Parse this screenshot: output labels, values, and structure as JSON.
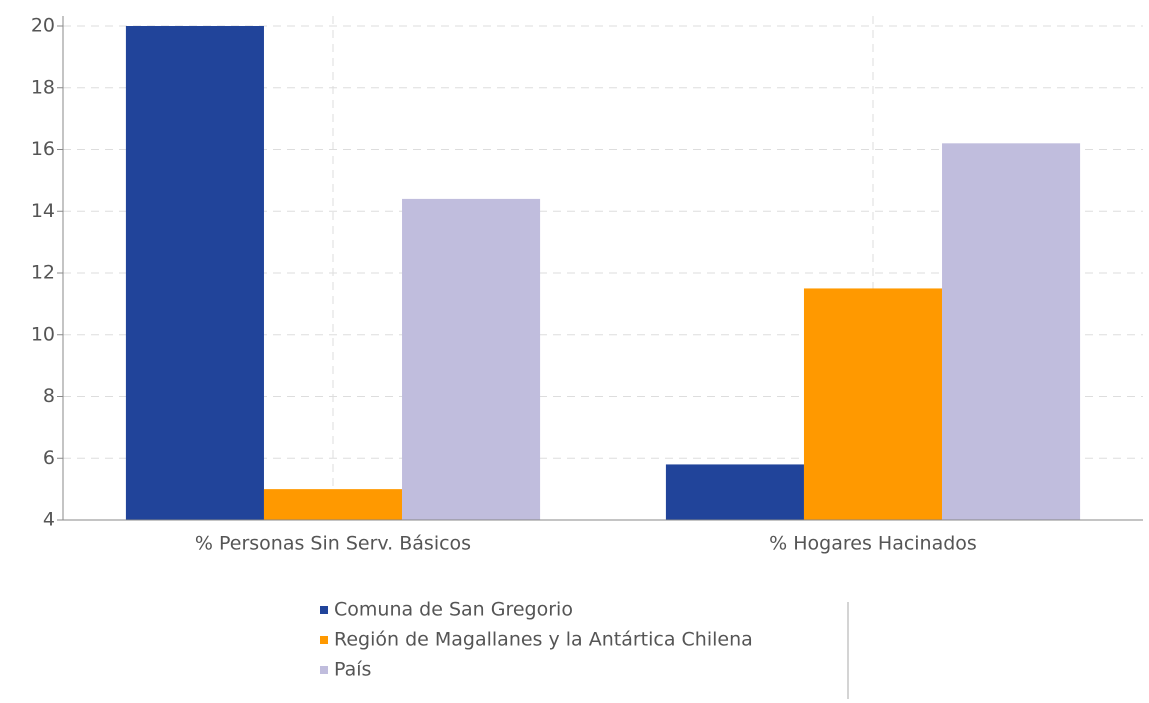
{
  "chart_data": {
    "type": "bar",
    "categories": [
      "% Personas Sin Serv. Básicos",
      "% Hogares Hacinados"
    ],
    "series": [
      {
        "name": "Comuna de San Gregorio",
        "color": "#21449a",
        "values": [
          20,
          5.8
        ]
      },
      {
        "name": "Región de Magallanes y la Antártica Chilena",
        "color": "#ff9900",
        "values": [
          5,
          11.5
        ]
      },
      {
        "name": "País",
        "color": "#c0bddd",
        "values": [
          14.4,
          16.2
        ]
      }
    ],
    "ylim": [
      4,
      20
    ],
    "yticks": [
      4,
      6,
      8,
      10,
      12,
      14,
      16,
      18,
      20
    ],
    "grid": true,
    "legend": "bottom"
  }
}
